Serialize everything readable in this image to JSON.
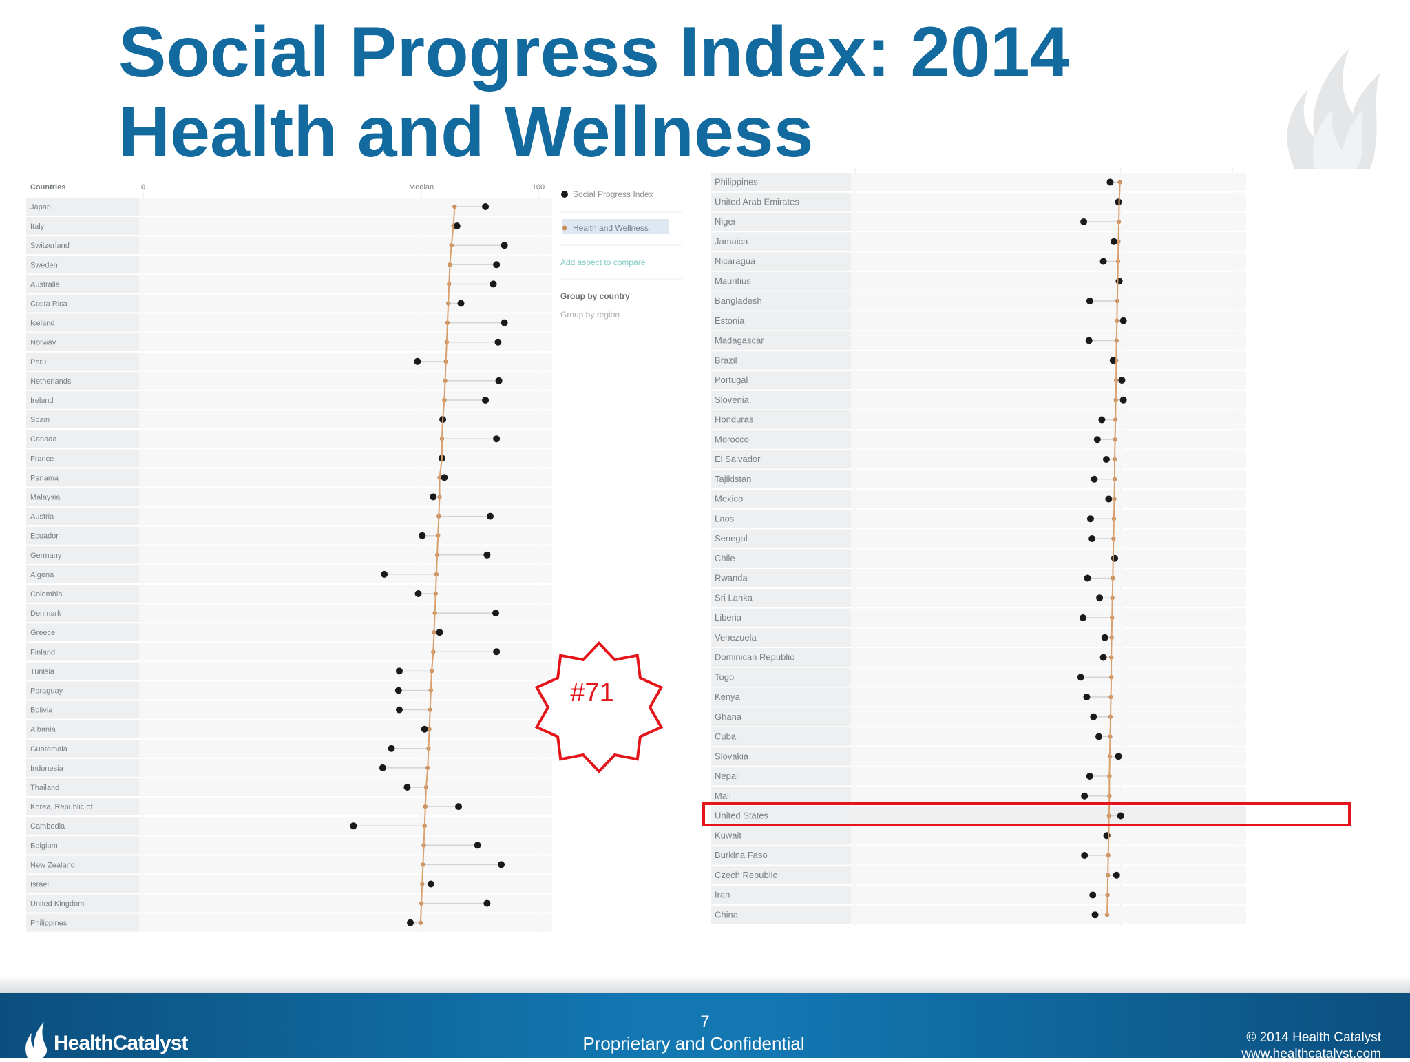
{
  "title": {
    "line1": "Social Progress Index: 2014",
    "line2": "Health and Wellness"
  },
  "callout": {
    "text": "#71",
    "color": "#e3151a"
  },
  "footer": {
    "page_number": "7",
    "confidential": "Proprietary and Confidential",
    "copyright": "© 2014 Health Catalyst",
    "website": "www.healthcatalyst.com",
    "brand": "HealthCatalyst"
  },
  "legend": {
    "items": [
      "Social Progress Index",
      "Health and Wellness",
      "Add aspect to compare"
    ],
    "group_options": [
      "Group by country",
      "Group by region"
    ]
  },
  "colors": {
    "title": "#126a9f",
    "spi_marker": "#1a1a1a",
    "health_marker": "#c8915f",
    "median_line": "#d9a06e",
    "highlight": "#e3151a",
    "footer": "#1377b2"
  },
  "chart_data": [
    {
      "type": "scatter",
      "header": {
        "countries_label": "Countries",
        "axis_min_label": "0",
        "median_label": "Median",
        "axis_max_label": "100"
      },
      "xlim": [
        0,
        100
      ],
      "median": 70.4,
      "series_names": [
        "Social Progress Index",
        "Health and Wellness"
      ],
      "rows": [
        {
          "country": "Japan",
          "spi": 86.6,
          "health": 78.8
        },
        {
          "country": "Italy",
          "spi": 79.4,
          "health": 78.5
        },
        {
          "country": "Switzerland",
          "spi": 91.4,
          "health": 78.0
        },
        {
          "country": "Sweden",
          "spi": 89.4,
          "health": 77.6
        },
        {
          "country": "Australia",
          "spi": 88.6,
          "health": 77.4
        },
        {
          "country": "Costa Rica",
          "spi": 80.4,
          "health": 77.2
        },
        {
          "country": "Iceland",
          "spi": 91.4,
          "health": 77.0
        },
        {
          "country": "Norway",
          "spi": 89.8,
          "health": 76.8
        },
        {
          "country": "Peru",
          "spi": 69.4,
          "health": 76.6
        },
        {
          "country": "Netherlands",
          "spi": 90.0,
          "health": 76.4
        },
        {
          "country": "Ireland",
          "spi": 86.6,
          "health": 76.2
        },
        {
          "country": "Spain",
          "spi": 75.8,
          "health": 75.8
        },
        {
          "country": "Canada",
          "spi": 89.4,
          "health": 75.6
        },
        {
          "country": "France",
          "spi": 75.6,
          "health": 75.6
        },
        {
          "country": "Panama",
          "spi": 76.2,
          "health": 75.0
        },
        {
          "country": "Malaysia",
          "spi": 73.4,
          "health": 75.0
        },
        {
          "country": "Austria",
          "spi": 87.8,
          "health": 74.8
        },
        {
          "country": "Ecuador",
          "spi": 70.6,
          "health": 74.6
        },
        {
          "country": "Germany",
          "spi": 87.0,
          "health": 74.4
        },
        {
          "country": "Algeria",
          "spi": 61.0,
          "health": 74.2
        },
        {
          "country": "Colombia",
          "spi": 69.6,
          "health": 74.0
        },
        {
          "country": "Denmark",
          "spi": 89.2,
          "health": 73.8
        },
        {
          "country": "Greece",
          "spi": 75.0,
          "health": 73.6
        },
        {
          "country": "Finland",
          "spi": 89.4,
          "health": 73.4
        },
        {
          "country": "Tunisia",
          "spi": 64.8,
          "health": 73.0
        },
        {
          "country": "Paraguay",
          "spi": 64.6,
          "health": 72.8
        },
        {
          "country": "Bolivia",
          "spi": 64.8,
          "health": 72.6
        },
        {
          "country": "Albania",
          "spi": 71.2,
          "health": 72.4
        },
        {
          "country": "Guatemala",
          "spi": 62.8,
          "health": 72.2
        },
        {
          "country": "Indonesia",
          "spi": 60.6,
          "health": 72.0
        },
        {
          "country": "Thailand",
          "spi": 66.8,
          "health": 71.6
        },
        {
          "country": "Korea, Republic of",
          "spi": 79.8,
          "health": 71.4
        },
        {
          "country": "Cambodia",
          "spi": 53.2,
          "health": 71.2
        },
        {
          "country": "Belgium",
          "spi": 84.6,
          "health": 71.0
        },
        {
          "country": "New Zealand",
          "spi": 90.6,
          "health": 70.8
        },
        {
          "country": "Israel",
          "spi": 72.8,
          "health": 70.6
        },
        {
          "country": "United Kingdom",
          "spi": 87.0,
          "health": 70.4
        },
        {
          "country": "Philippines",
          "spi": 67.6,
          "health": 70.2
        }
      ]
    },
    {
      "type": "scatter",
      "xlim": [
        0,
        100
      ],
      "median": 70.4,
      "series_names": [
        "Social Progress Index",
        "Health and Wellness"
      ],
      "highlighted_row": "United States",
      "rows": [
        {
          "country": "Philippines",
          "spi": 67.6,
          "health": 70.2
        },
        {
          "country": "United Arab Emirates",
          "spi": 69.8,
          "health": 70.0
        },
        {
          "country": "Niger",
          "spi": 60.6,
          "health": 69.9
        },
        {
          "country": "Jamaica",
          "spi": 68.6,
          "health": 69.8
        },
        {
          "country": "Nicaragua",
          "spi": 65.8,
          "health": 69.7
        },
        {
          "country": "Mauritius",
          "spi": 70.0,
          "health": 69.6
        },
        {
          "country": "Bangladesh",
          "spi": 62.2,
          "health": 69.5
        },
        {
          "country": "Estonia",
          "spi": 71.1,
          "health": 69.4
        },
        {
          "country": "Madagascar",
          "spi": 62.0,
          "health": 69.3
        },
        {
          "country": "Brazil",
          "spi": 68.4,
          "health": 69.2
        },
        {
          "country": "Portugal",
          "spi": 70.7,
          "health": 69.2
        },
        {
          "country": "Slovenia",
          "spi": 71.1,
          "health": 69.1
        },
        {
          "country": "Honduras",
          "spi": 65.4,
          "health": 69.0
        },
        {
          "country": "Morocco",
          "spi": 64.2,
          "health": 68.9
        },
        {
          "country": "El Salvador",
          "spi": 66.6,
          "health": 68.8
        },
        {
          "country": "Tajikistan",
          "spi": 63.4,
          "health": 68.8
        },
        {
          "country": "Mexico",
          "spi": 67.2,
          "health": 68.7
        },
        {
          "country": "Laos",
          "spi": 62.4,
          "health": 68.6
        },
        {
          "country": "Senegal",
          "spi": 62.8,
          "health": 68.5
        },
        {
          "country": "Chile",
          "spi": 68.8,
          "health": 68.4
        },
        {
          "country": "Rwanda",
          "spi": 61.6,
          "health": 68.3
        },
        {
          "country": "Sri Lanka",
          "spi": 64.8,
          "health": 68.2
        },
        {
          "country": "Liberia",
          "spi": 60.4,
          "health": 68.1
        },
        {
          "country": "Venezuela",
          "spi": 66.2,
          "health": 68.0
        },
        {
          "country": "Dominican Republic",
          "spi": 65.8,
          "health": 67.9
        },
        {
          "country": "Togo",
          "spi": 59.8,
          "health": 67.9
        },
        {
          "country": "Kenya",
          "spi": 61.4,
          "health": 67.8
        },
        {
          "country": "Ghana",
          "spi": 63.2,
          "health": 67.7
        },
        {
          "country": "Cuba",
          "spi": 64.6,
          "health": 67.6
        },
        {
          "country": "Slovakia",
          "spi": 69.8,
          "health": 67.5
        },
        {
          "country": "Nepal",
          "spi": 62.2,
          "health": 67.4
        },
        {
          "country": "Mali",
          "spi": 60.8,
          "health": 67.4
        },
        {
          "country": "United States",
          "spi": 70.4,
          "health": 67.3
        },
        {
          "country": "Kuwait",
          "spi": 66.7,
          "health": 67.2
        },
        {
          "country": "Burkina Faso",
          "spi": 60.8,
          "health": 67.1
        },
        {
          "country": "Czech Republic",
          "spi": 69.3,
          "health": 67.0
        },
        {
          "country": "Iran",
          "spi": 63.0,
          "health": 66.9
        },
        {
          "country": "China",
          "spi": 63.6,
          "health": 66.8
        }
      ]
    }
  ]
}
